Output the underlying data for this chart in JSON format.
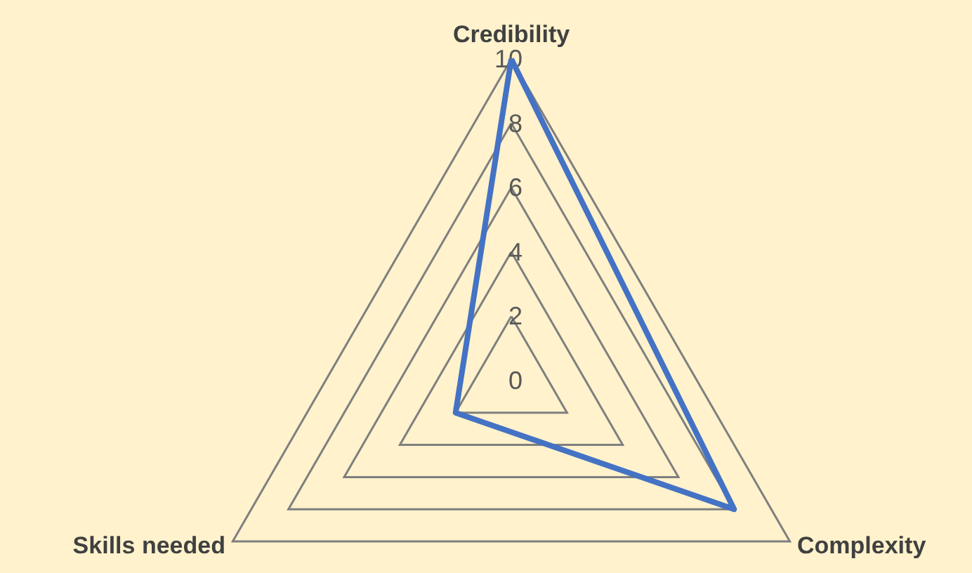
{
  "chart_data": {
    "type": "radar",
    "categories": [
      "Credibility",
      "Complexity",
      "Skills needed"
    ],
    "series": [
      {
        "color": "#4472c4",
        "values": [
          10,
          8,
          2
        ]
      }
    ],
    "ylim": [
      0,
      10
    ],
    "yticks": [
      0,
      2,
      4,
      6,
      8,
      10
    ],
    "grid": true,
    "marker": "none",
    "line_style": "solid"
  }
}
